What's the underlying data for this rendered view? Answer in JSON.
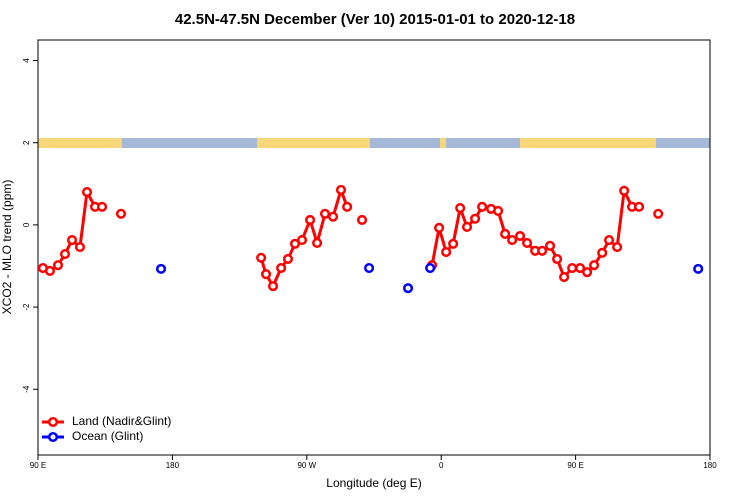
{
  "chart_data": {
    "type": "line",
    "title": "42.5N-47.5N December (Ver 10)   2015-01-01 to 2020-12-18",
    "x_label": "Longitude (deg E)",
    "y_label": "XCO2 - MLO trend (ppm)",
    "xlim": [
      90,
      540
    ],
    "ylim": [
      -5.6,
      4.5
    ],
    "xticks": [
      {
        "value": 90,
        "label": "90 E"
      },
      180,
      {
        "value": 270,
        "label": "90 W"
      },
      {
        "value": 360,
        "label": "0"
      },
      {
        "value": 450,
        "label": "90 E"
      },
      {
        "value": 540,
        "label": "180"
      }
    ],
    "yticks": [
      -4,
      -2,
      0,
      2,
      4
    ],
    "legend": "bottom-left",
    "series": [
      {
        "name": "Land (Nadir&Glint)",
        "color": "#ff0000",
        "lines": true,
        "x": [
          93.3,
          98.0,
          103.4,
          108.1,
          112.8,
          118.1,
          122.8,
          128.2,
          132.9,
          null,
          145.6,
          null,
          239.4,
          242.7,
          247.4,
          252.8,
          257.4,
          262.1,
          266.8,
          272.2,
          276.9,
          282.2,
          287.6,
          292.9,
          297.0,
          null,
          307.0,
          null,
          353.9,
          358.6,
          363.3,
          368.0,
          372.7,
          377.3,
          382.7,
          387.4,
          393.4,
          398.1,
          402.8,
          407.5,
          412.8,
          417.5,
          422.9,
          427.6,
          432.9,
          437.6,
          442.3,
          447.7,
          453.0,
          457.7,
          462.4,
          467.8,
          472.4,
          477.8,
          482.5,
          487.8,
          492.5,
          null,
          505.3
        ],
        "values": [
          -1.05,
          -1.12,
          -0.98,
          -0.71,
          -0.37,
          -0.54,
          0.8,
          0.44,
          0.44,
          null,
          0.27,
          null,
          -0.8,
          -1.2,
          -1.49,
          -1.05,
          -0.83,
          -0.46,
          -0.37,
          0.12,
          -0.44,
          0.27,
          0.2,
          0.85,
          0.44,
          null,
          0.12,
          null,
          -0.98,
          -0.07,
          -0.66,
          -0.46,
          0.41,
          -0.05,
          0.15,
          0.44,
          0.39,
          0.34,
          -0.22,
          -0.37,
          -0.27,
          -0.44,
          -0.63,
          -0.63,
          -0.51,
          -0.83,
          -1.27,
          -1.05,
          -1.05,
          -1.15,
          -0.98,
          -0.68,
          -0.37,
          -0.54,
          0.83,
          0.44,
          0.44,
          null,
          0.27
        ]
      },
      {
        "name": "Ocean (Glint)",
        "color": "#0000ff",
        "lines": false,
        "x": [
          172.4,
          311.7,
          337.8,
          352.6,
          532.1
        ],
        "values": [
          -1.07,
          -1.05,
          -1.54,
          -1.05,
          -1.07
        ]
      }
    ]
  }
}
